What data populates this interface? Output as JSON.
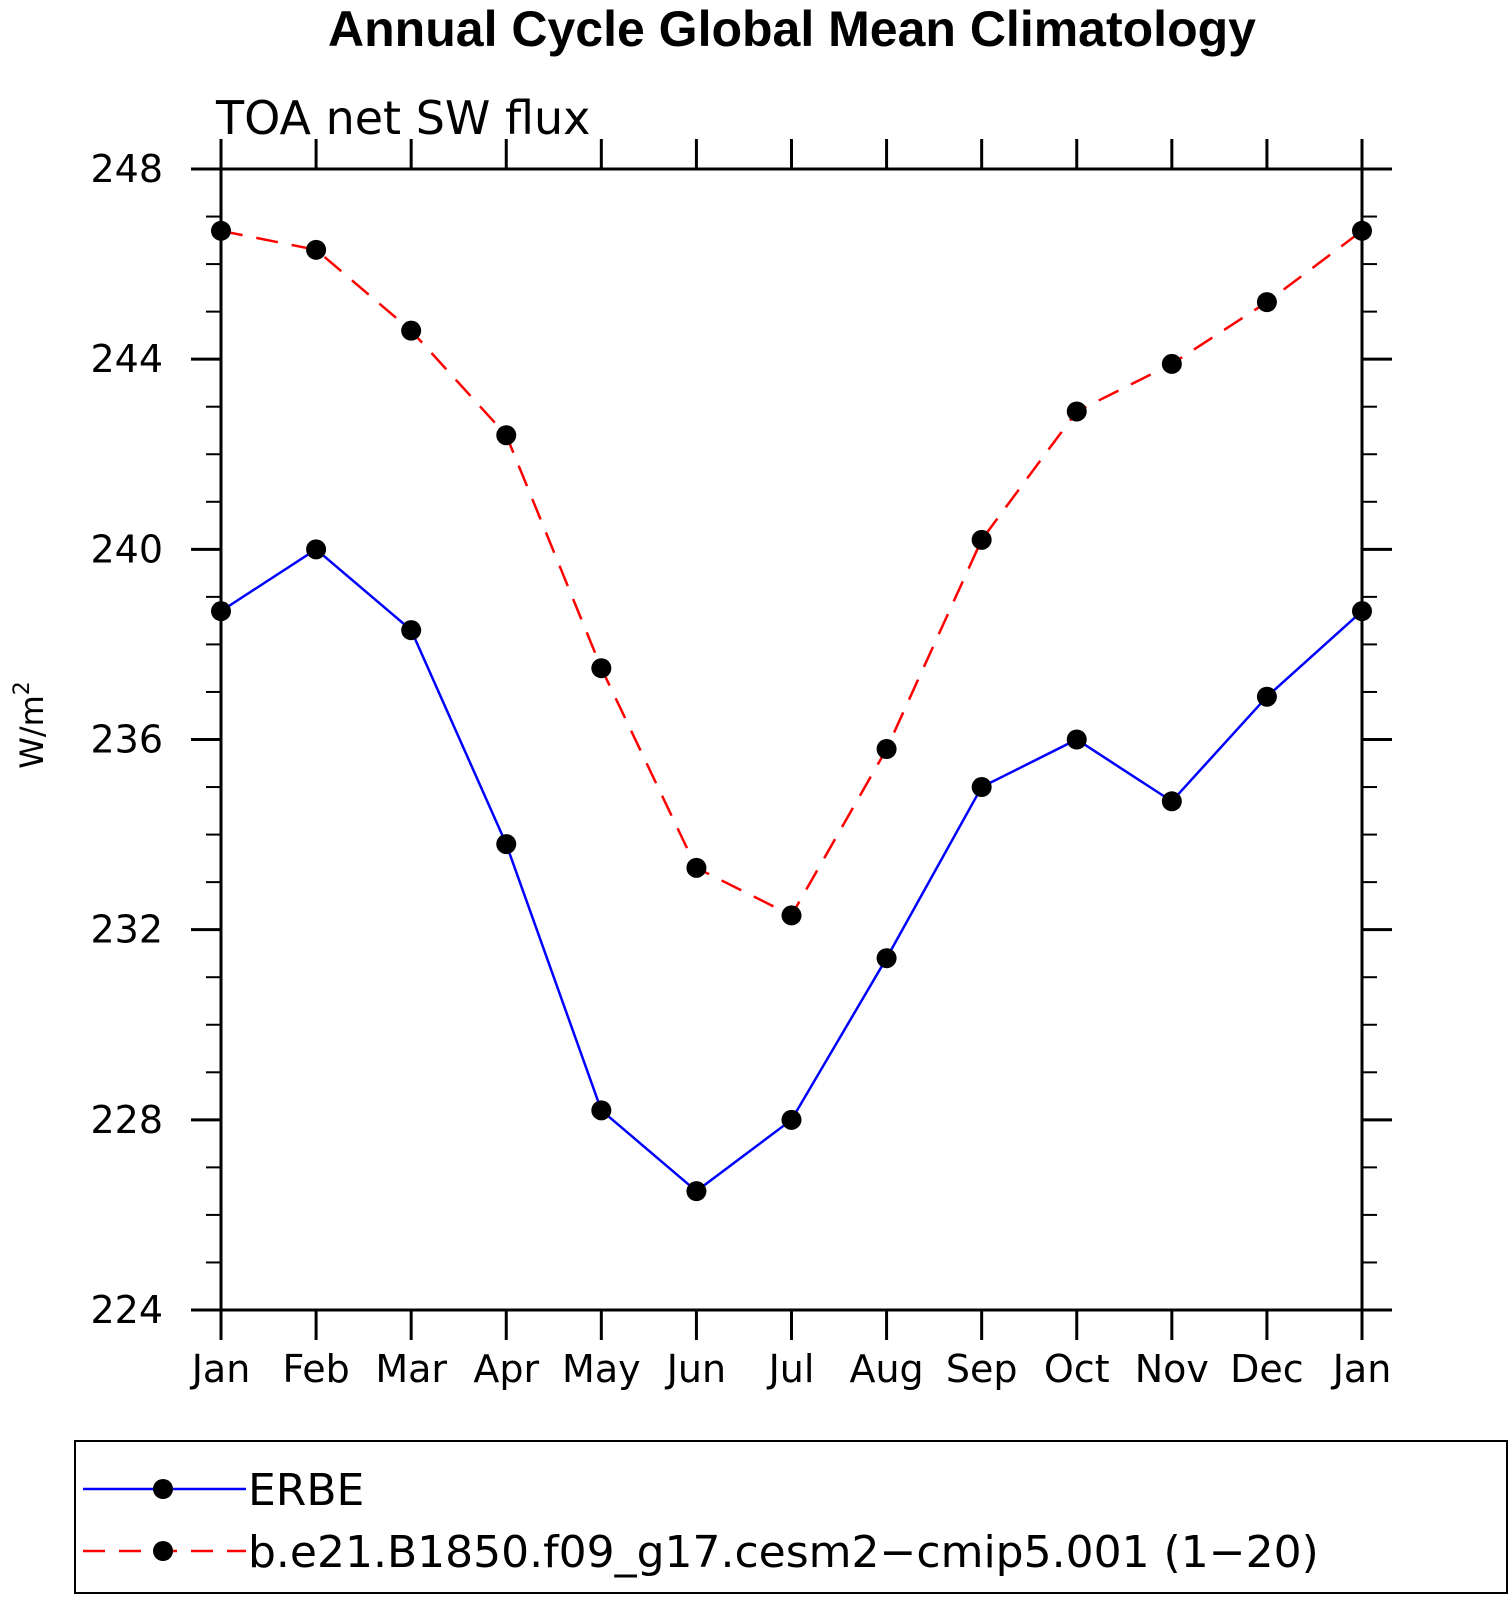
{
  "chart_data": {
    "type": "line",
    "title": "Annual Cycle Global Mean Climatology",
    "subtitle": "TOA net SW flux",
    "ylabel": "W/m",
    "ylabel_superscript": "2",
    "xlabel": "",
    "categories": [
      "Jan",
      "Feb",
      "Mar",
      "Apr",
      "May",
      "Jun",
      "Jul",
      "Aug",
      "Sep",
      "Oct",
      "Nov",
      "Dec",
      "Jan"
    ],
    "ylim": [
      224,
      248
    ],
    "yticks": [
      "224",
      "228",
      "232",
      "236",
      "240",
      "244",
      "248"
    ],
    "grid": false,
    "legend_position": "bottom",
    "series": [
      {
        "name": "ERBE",
        "color": "#0000ff",
        "dash": "solid",
        "marker": "filled-circle",
        "values": [
          238.7,
          240.0,
          238.3,
          233.8,
          228.2,
          226.5,
          228.0,
          231.4,
          235.0,
          236.0,
          234.7,
          236.9,
          238.7
        ]
      },
      {
        "name": "b.e21.B1850.f09_g17.cesm2−cmip5.001 (1−20)",
        "color": "#ff0000",
        "dash": "dashed",
        "marker": "filled-circle",
        "values": [
          246.7,
          246.3,
          244.6,
          242.4,
          237.5,
          233.3,
          232.3,
          235.8,
          240.2,
          242.9,
          243.9,
          245.2,
          246.7
        ]
      }
    ]
  }
}
